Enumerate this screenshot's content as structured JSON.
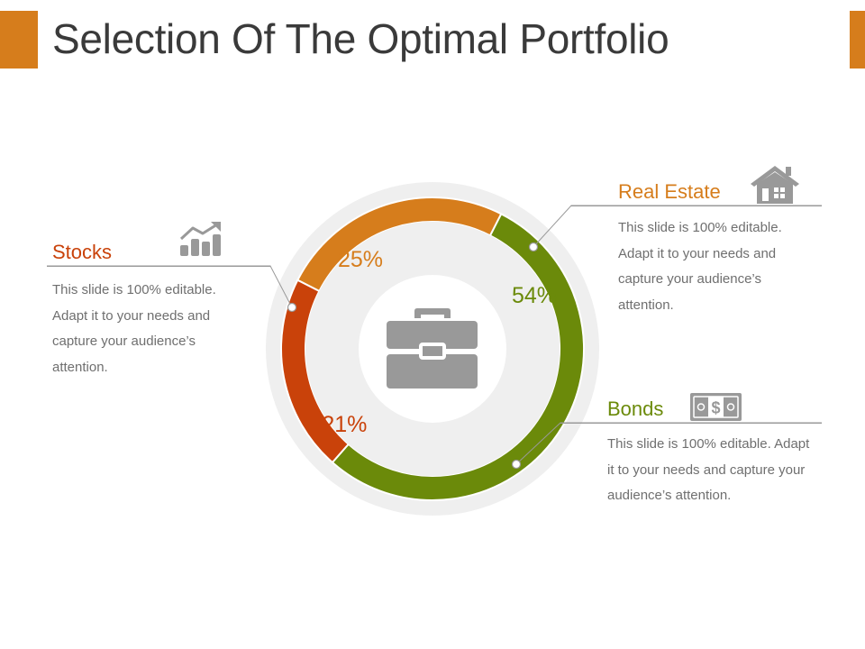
{
  "title": "Selection Of The Optimal Portfolio",
  "colors": {
    "accent": "#d67d1c",
    "stocks": "#c9420a",
    "real_estate": "#d67d1c",
    "bonds": "#6b8a0a",
    "ring_background": "#efefef",
    "icon_gray": "#999999"
  },
  "chart_data": {
    "type": "pie",
    "style": "donut",
    "categories": [
      "Real Estate",
      "Bonds",
      "Stocks"
    ],
    "values": [
      25,
      54,
      21
    ],
    "value_labels": [
      "25%",
      "54%",
      "21%"
    ],
    "center_icon": "briefcase-icon"
  },
  "items": {
    "real_estate": {
      "heading": "Real Estate",
      "icon": "house-icon",
      "lines": [
        "This slide is 100% editable.",
        "Adapt it to your needs and",
        "capture your audience’s",
        "attention."
      ]
    },
    "stocks": {
      "heading": "Stocks",
      "icon": "growth-chart-icon",
      "lines": [
        "This slide is 100% editable.",
        "Adapt it to your needs and",
        "capture your audience’s",
        "attention."
      ]
    },
    "bonds": {
      "heading": "Bonds",
      "icon": "money-bill-icon",
      "lines": [
        "This slide is 100% editable. Adapt",
        "it to your needs and capture your",
        "audience’s attention."
      ]
    }
  }
}
